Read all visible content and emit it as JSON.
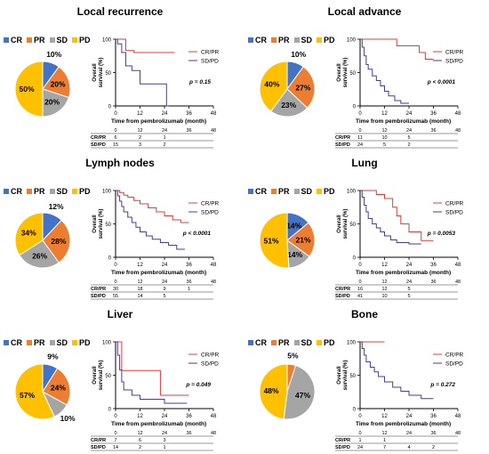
{
  "legend": [
    {
      "label": "CR",
      "color": "#4472C4"
    },
    {
      "label": "PR",
      "color": "#ED7D31"
    },
    {
      "label": "SD",
      "color": "#A5A5A5"
    },
    {
      "label": "PD",
      "color": "#FFC000"
    }
  ],
  "chart_data": [
    {
      "title": "Local recurrence",
      "pie": {
        "type": "pie",
        "categories": [
          "CR",
          "PR",
          "SD",
          "PD"
        ],
        "values": [
          10,
          20,
          20,
          50
        ],
        "labels": [
          "10%",
          "20%",
          "20%",
          "50%"
        ]
      },
      "km": {
        "type": "line",
        "ylabel": "Overall survival (%)",
        "xlabel": "Time from pembrolizumab (month)",
        "xticks": [
          0,
          12,
          24,
          36,
          48
        ],
        "yticks": [
          0,
          50,
          100
        ],
        "xlim": [
          0,
          48
        ],
        "ylim": [
          0,
          100
        ],
        "p_value": "p = 0.15",
        "series": [
          {
            "name": "CR/PR",
            "color": "#E03C3C",
            "x": [
              0,
              5,
              5,
              9,
              9,
              12,
              19,
              24,
              29
            ],
            "y": [
              100,
              100,
              83,
              83,
              80,
              80,
              80,
              80,
              80
            ]
          },
          {
            "name": "SD/PD",
            "color": "#4B3A99",
            "x": [
              0,
              1,
              1,
              3,
              3,
              5,
              5,
              8,
              8,
              12,
              12,
              17,
              22,
              24,
              25,
              25,
              26
            ],
            "y": [
              100,
              100,
              93,
              93,
              80,
              80,
              60,
              60,
              53,
              53,
              33,
              33,
              33,
              33,
              33,
              0,
              0
            ]
          }
        ],
        "risk_table": {
          "times": [
            0,
            12,
            24,
            36,
            48
          ],
          "rows": [
            {
              "label": "CR/PR",
              "values": [
                "6",
                "2",
                "1"
              ]
            },
            {
              "label": "SD/PD",
              "values": [
                "15",
                "3",
                "2"
              ]
            }
          ]
        }
      }
    },
    {
      "title": "Local advance",
      "pie": {
        "type": "pie",
        "categories": [
          "CR",
          "PR",
          "SD",
          "PD"
        ],
        "values": [
          10,
          27,
          23,
          40
        ],
        "labels": [
          "10%",
          "27%",
          "23%",
          "40%"
        ]
      },
      "km": {
        "type": "line",
        "ylabel": "Overall survival (%)",
        "xlabel": "Time from pembrolizumab (month)",
        "xticks": [
          0,
          12,
          24,
          36,
          48
        ],
        "yticks": [
          0,
          50,
          100
        ],
        "xlim": [
          0,
          48
        ],
        "ylim": [
          0,
          100
        ],
        "p_value": "p < 0.0001",
        "series": [
          {
            "name": "CR/PR",
            "color": "#E03C3C",
            "x": [
              0,
              18,
              18,
              29,
              29,
              32,
              32,
              36
            ],
            "y": [
              100,
              100,
              90,
              90,
              80,
              80,
              70,
              70
            ]
          },
          {
            "name": "SD/PD",
            "color": "#4B3A99",
            "x": [
              0,
              1,
              1,
              2,
              2,
              3,
              3,
              4,
              4,
              6,
              6,
              8,
              8,
              10,
              10,
              12,
              12,
              14,
              14,
              17,
              17,
              20,
              20,
              24
            ],
            "y": [
              100,
              100,
              88,
              88,
              75,
              75,
              62,
              62,
              55,
              55,
              45,
              45,
              38,
              38,
              30,
              30,
              22,
              22,
              15,
              15,
              8,
              8,
              4,
              4
            ]
          }
        ],
        "risk_table": {
          "times": [
            0,
            12,
            24,
            36,
            48
          ],
          "rows": [
            {
              "label": "CR/PR",
              "values": [
                "11",
                "10",
                "5"
              ]
            },
            {
              "label": "SD/PD",
              "values": [
                "24",
                "5",
                "2"
              ]
            }
          ]
        }
      }
    },
    {
      "title": "Lymph nodes",
      "pie": {
        "type": "pie",
        "categories": [
          "CR",
          "PR",
          "SD",
          "PD"
        ],
        "values": [
          12,
          28,
          26,
          34
        ],
        "labels": [
          "12%",
          "28%",
          "26%",
          "34%"
        ]
      },
      "km": {
        "type": "line",
        "ylabel": "Overall survival (%)",
        "xlabel": "Time from pembrolizumab (month)",
        "xticks": [
          0,
          12,
          24,
          36,
          48
        ],
        "yticks": [
          0,
          50,
          100
        ],
        "xlim": [
          0,
          48
        ],
        "ylim": [
          0,
          100
        ],
        "p_value": "p < 0.0001",
        "series": [
          {
            "name": "CR/PR",
            "color": "#E03C3C",
            "x": [
              0,
              2,
              2,
              4,
              4,
              6,
              6,
              9,
              9,
              12,
              12,
              16,
              16,
              20,
              20,
              24,
              24,
              28,
              28,
              32,
              32,
              36
            ],
            "y": [
              100,
              100,
              97,
              97,
              93,
              93,
              90,
              90,
              85,
              85,
              80,
              80,
              74,
              74,
              68,
              68,
              62,
              62,
              56,
              56,
              52,
              52
            ]
          },
          {
            "name": "SD/PD",
            "color": "#4B3A99",
            "x": [
              0,
              1,
              1,
              2,
              2,
              3,
              3,
              4,
              4,
              6,
              6,
              8,
              8,
              10,
              10,
              12,
              12,
              15,
              15,
              18,
              18,
              22,
              22,
              26,
              26,
              30,
              30,
              34
            ],
            "y": [
              100,
              100,
              92,
              92,
              84,
              84,
              76,
              76,
              68,
              68,
              60,
              60,
              52,
              52,
              45,
              45,
              38,
              38,
              32,
              32,
              27,
              27,
              22,
              22,
              18,
              18,
              12,
              12
            ]
          }
        ],
        "risk_table": {
          "times": [
            0,
            12,
            24,
            36,
            48
          ],
          "rows": [
            {
              "label": "CR/PR",
              "values": [
                "30",
                "18",
                "9",
                "1"
              ]
            },
            {
              "label": "SD/PD",
              "values": [
                "55",
                "14",
                "5"
              ]
            }
          ]
        }
      }
    },
    {
      "title": "Lung",
      "pie": {
        "type": "pie",
        "categories": [
          "CR",
          "PR",
          "SD",
          "PD"
        ],
        "values": [
          14,
          21,
          14,
          51
        ],
        "labels": [
          "14%",
          "21%",
          "14%",
          "51%"
        ]
      },
      "km": {
        "type": "line",
        "ylabel": "Overall survival (%)",
        "xlabel": "Time from pembrolizumab (month)",
        "xticks": [
          0,
          12,
          24,
          36,
          48
        ],
        "yticks": [
          0,
          50,
          100
        ],
        "xlim": [
          0,
          48
        ],
        "ylim": [
          0,
          100
        ],
        "p_value": "p = 0.0053",
        "series": [
          {
            "name": "CR/PR",
            "color": "#E03C3C",
            "x": [
              0,
              8,
              8,
              12,
              12,
              16,
              16,
              18,
              18,
              20,
              20,
              24,
              24,
              30,
              30,
              36
            ],
            "y": [
              100,
              100,
              94,
              94,
              88,
              88,
              75,
              75,
              62,
              62,
              50,
              50,
              38,
              38,
              25,
              25
            ]
          },
          {
            "name": "SD/PD",
            "color": "#4B3A99",
            "x": [
              0,
              1,
              1,
              2,
              2,
              3,
              3,
              4,
              4,
              6,
              6,
              8,
              8,
              10,
              10,
              12,
              12,
              15,
              15,
              18,
              18,
              24,
              24,
              30
            ],
            "y": [
              100,
              100,
              90,
              90,
              78,
              78,
              68,
              68,
              58,
              58,
              50,
              50,
              44,
              44,
              38,
              38,
              32,
              32,
              26,
              26,
              22,
              22,
              20,
              20
            ]
          }
        ],
        "risk_table": {
          "times": [
            0,
            12,
            24,
            36,
            48
          ],
          "rows": [
            {
              "label": "CR/PR",
              "values": [
                "16",
                "12",
                "5"
              ]
            },
            {
              "label": "SD/PD",
              "values": [
                "41",
                "10",
                "5"
              ]
            }
          ]
        }
      }
    },
    {
      "title": "Liver",
      "pie": {
        "type": "pie",
        "categories": [
          "CR",
          "PR",
          "SD",
          "PD"
        ],
        "values": [
          9,
          24,
          10,
          57
        ],
        "labels": [
          "9%",
          "24%",
          "10%",
          "57%"
        ]
      },
      "km": {
        "type": "line",
        "ylabel": "Overall survival (%)",
        "xlabel": "Time from pembrolizumab (month)",
        "xticks": [
          0,
          12,
          24,
          36,
          48
        ],
        "yticks": [
          0,
          50,
          100
        ],
        "xlim": [
          0,
          48
        ],
        "ylim": [
          0,
          100
        ],
        "p_value": "p = 0.049",
        "series": [
          {
            "name": "CR/PR",
            "color": "#E03C3C",
            "x": [
              0,
              3,
              3,
              22,
              22,
              36
            ],
            "y": [
              100,
              100,
              57,
              57,
              20,
              20
            ]
          },
          {
            "name": "SD/PD",
            "color": "#4B3A99",
            "x": [
              0,
              1,
              1,
              2,
              2,
              3,
              3,
              4,
              4,
              8,
              8,
              12,
              12,
              24,
              24,
              35
            ],
            "y": [
              100,
              100,
              80,
              80,
              58,
              58,
              40,
              40,
              28,
              28,
              20,
              20,
              14,
              14,
              8,
              8
            ]
          }
        ],
        "risk_table": {
          "times": [
            0,
            12,
            24,
            36,
            48
          ],
          "rows": [
            {
              "label": "CR/PR",
              "values": [
                "7",
                "6",
                "3"
              ]
            },
            {
              "label": "SD/PD",
              "values": [
                "14",
                "2",
                "1"
              ]
            }
          ]
        }
      }
    },
    {
      "title": "Bone",
      "pie": {
        "type": "pie",
        "categories": [
          "CR",
          "PR",
          "SD",
          "PD"
        ],
        "values": [
          0,
          5,
          47,
          48
        ],
        "labels": [
          "5%",
          "47%",
          "48%"
        ]
      },
      "km": {
        "type": "line",
        "ylabel": "Overall survival (%)",
        "xlabel": "Time from pembrolizumab (month)",
        "xticks": [
          0,
          12,
          24,
          36,
          48
        ],
        "yticks": [
          0,
          50,
          100
        ],
        "xlim": [
          0,
          48
        ],
        "ylim": [
          0,
          100
        ],
        "p_value": "p = 0.272",
        "series": [
          {
            "name": "CR/PR",
            "color": "#E03C3C",
            "x": [
              0,
              12
            ],
            "y": [
              100,
              100
            ]
          },
          {
            "name": "SD/PD",
            "color": "#4B3A99",
            "x": [
              0,
              1,
              1,
              2,
              2,
              3,
              3,
              5,
              5,
              7,
              7,
              9,
              9,
              12,
              12,
              16,
              16,
              20,
              20,
              24,
              24,
              30,
              30,
              36
            ],
            "y": [
              100,
              100,
              90,
              90,
              80,
              80,
              70,
              70,
              62,
              62,
              55,
              55,
              48,
              48,
              40,
              40,
              32,
              32,
              26,
              26,
              20,
              20,
              15,
              15
            ]
          }
        ],
        "risk_table": {
          "times": [
            0,
            12,
            24,
            36,
            48
          ],
          "rows": [
            {
              "label": "CR/PR",
              "values": [
                "1",
                "1"
              ]
            },
            {
              "label": "SD/PD",
              "values": [
                "24",
                "7",
                "4",
                "2"
              ]
            }
          ]
        }
      }
    }
  ]
}
